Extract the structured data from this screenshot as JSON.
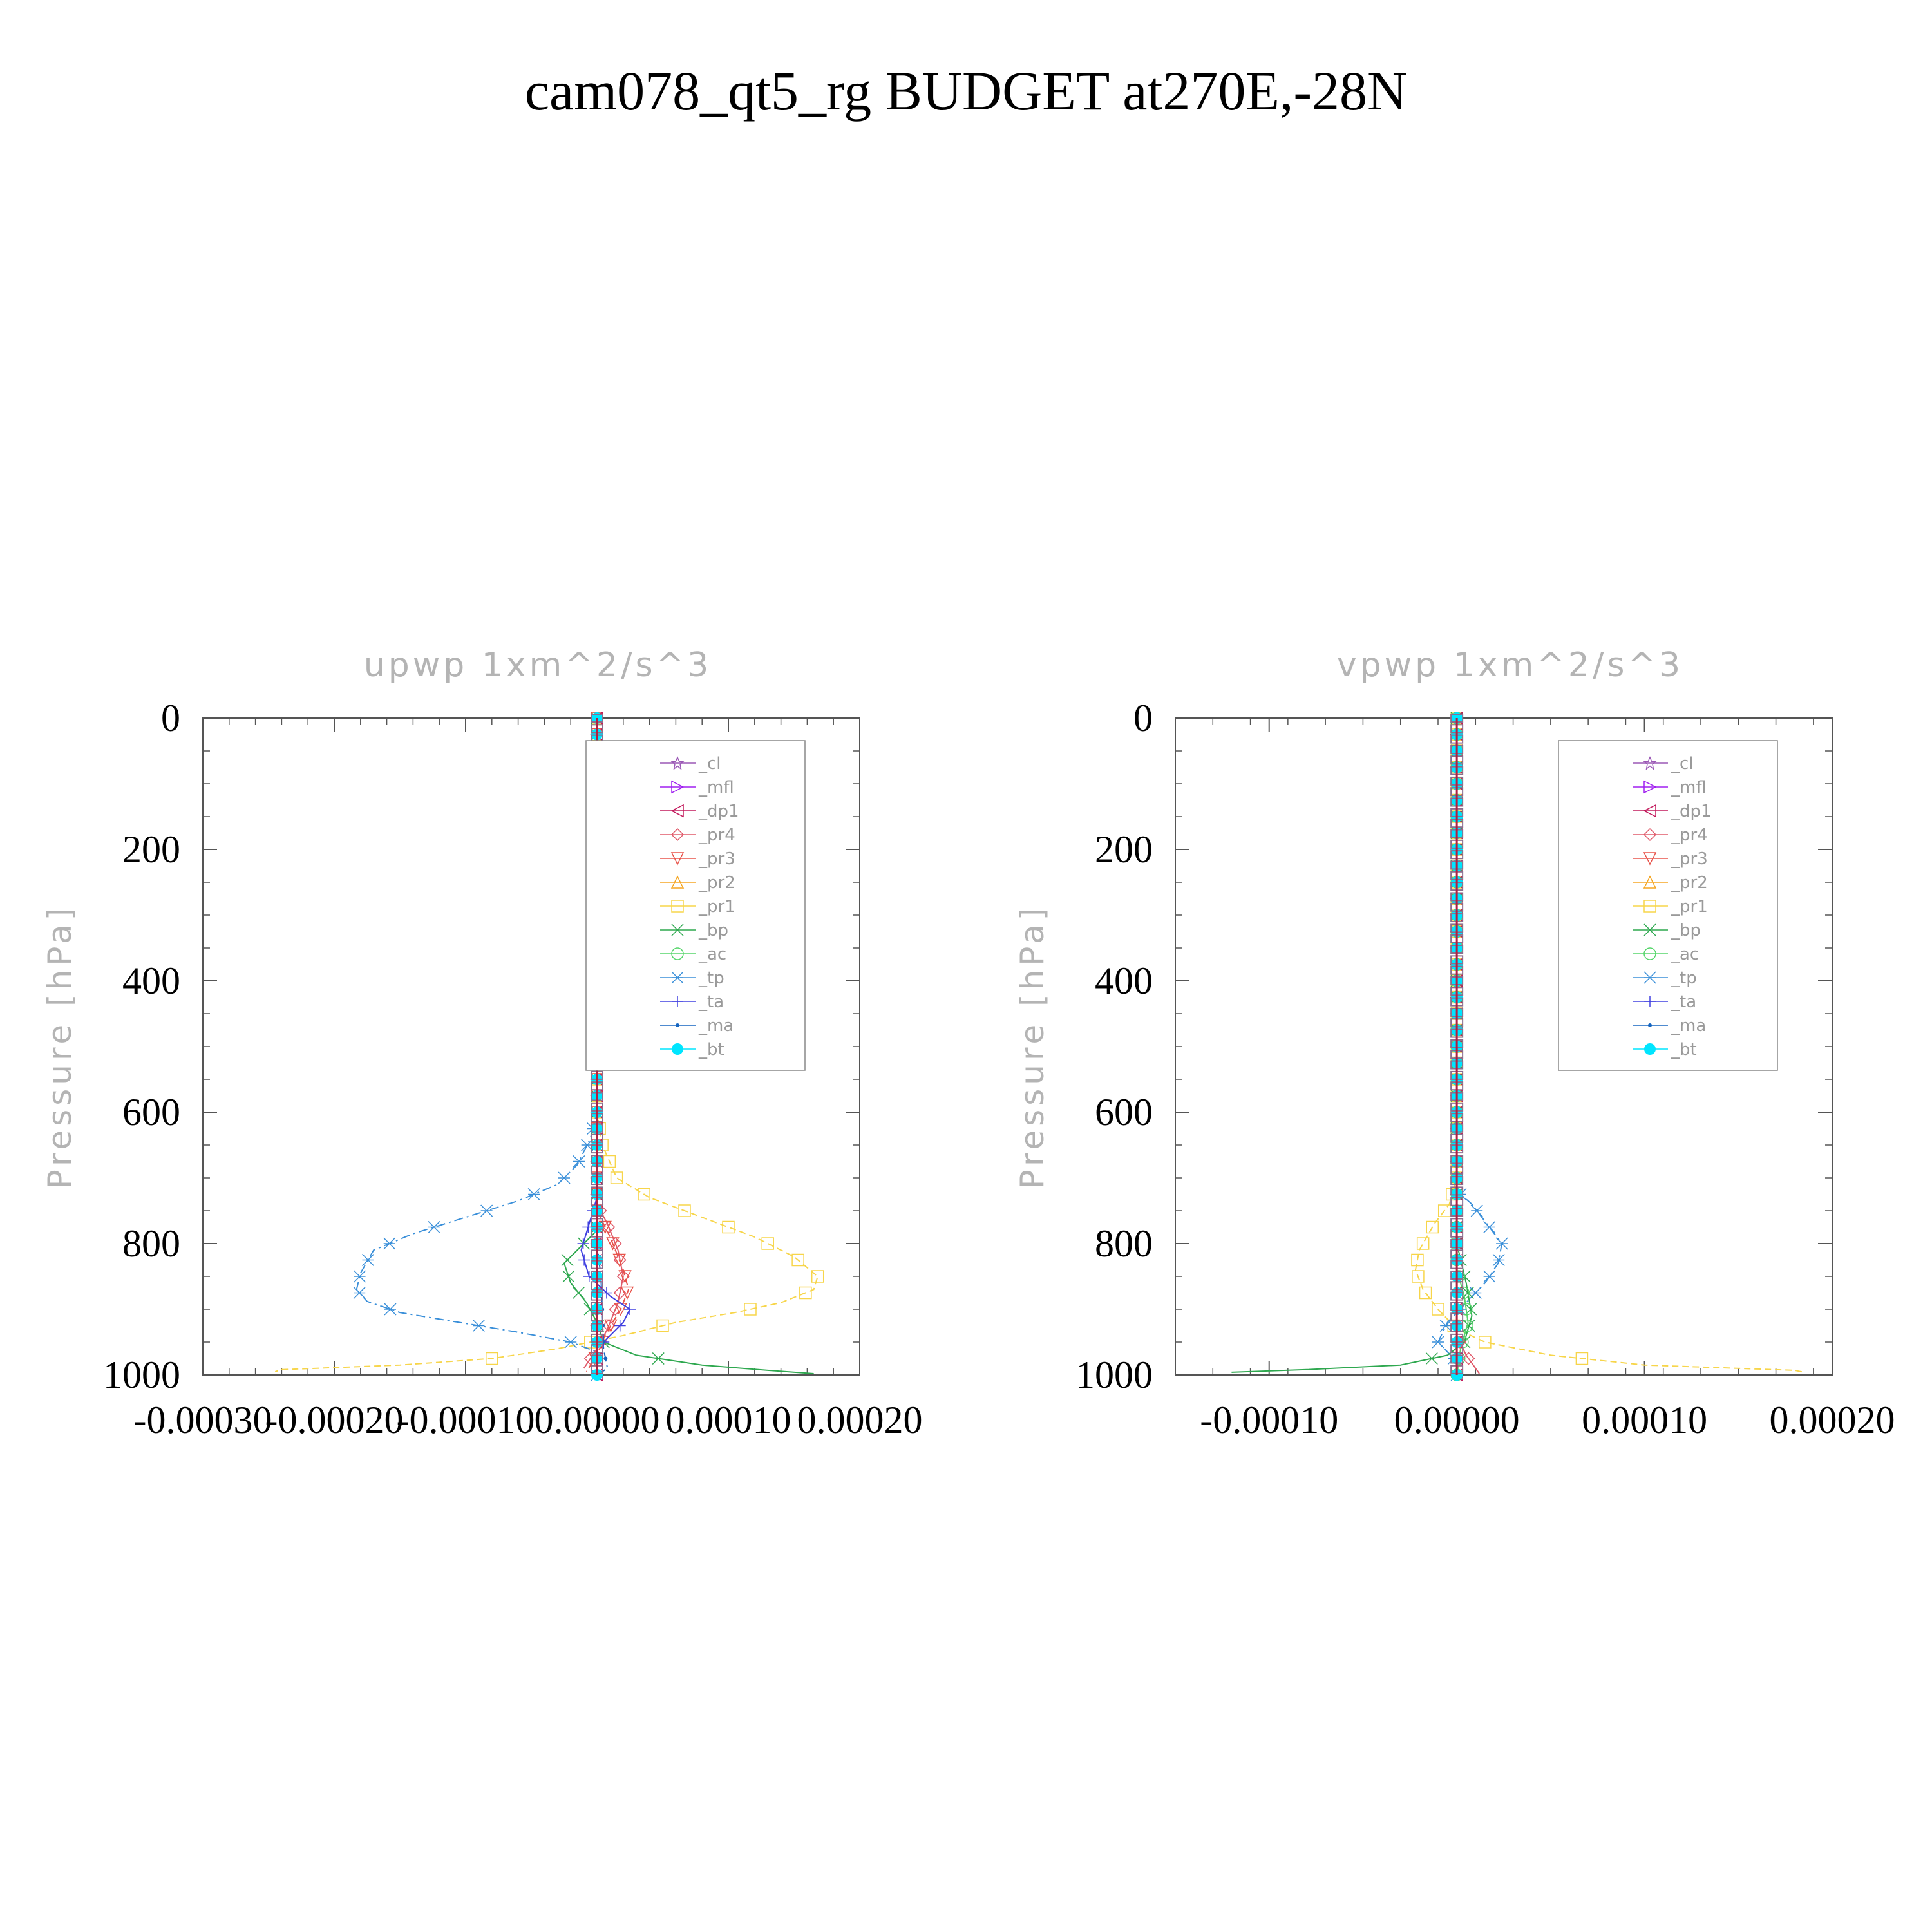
{
  "title": "cam078_qt5_rg  BUDGET at270E,-28N",
  "ylabel": "Pressure [hPa]",
  "legend": [
    "_cl",
    "_mfl",
    "_dp1",
    "_pr4",
    "_pr3",
    "_pr2",
    "_pr1",
    "_bp",
    "_ac",
    "_tp",
    "_ta",
    "_ma",
    "_bt"
  ],
  "colors": {
    "_cl": "#9b59b6",
    "_mfl": "#a020f0",
    "_dp1": "#c2185b",
    "_pr4": "#e05a6a",
    "_pr3": "#e8534a",
    "_pr2": "#f5a623",
    "_pr1": "#f7d54a",
    "_bp": "#2ea84f",
    "_ac": "#55d66a",
    "_tp": "#3a8fd9",
    "_ta": "#4040e0",
    "_ma": "#1565c0",
    "_bt": "#00e5ff"
  },
  "chart_data": [
    {
      "type": "line",
      "title": "upwp   1xm^2/s^3",
      "ylabel": "Pressure [hPa]",
      "xlim": [
        -0.0003,
        0.0002
      ],
      "ylim": [
        1000,
        0
      ],
      "xticks": [
        "-0.00030",
        "-0.00020",
        "-0.00010",
        "0.00000",
        "0.00010",
        "0.00020"
      ],
      "yticks": [
        "0",
        "200",
        "400",
        "600",
        "800",
        "1000"
      ],
      "legend_placement": "top-right",
      "series": [
        {
          "name": "_pr1",
          "points": [
            [
              0.0,
              0
            ],
            [
              0.0,
              600
            ],
            [
              4e-06,
              650
            ],
            [
              1.5e-05,
              700
            ],
            [
              4e-05,
              730
            ],
            [
              8e-05,
              760
            ],
            [
              0.00012,
              790
            ],
            [
              0.00015,
              820
            ],
            [
              0.000168,
              850
            ],
            [
              0.000165,
              870
            ],
            [
              0.00014,
              890
            ],
            [
              0.000105,
              905
            ],
            [
              6e-05,
              920
            ],
            [
              2e-05,
              940
            ],
            [
              -3e-05,
              960
            ],
            [
              -8e-05,
              975
            ],
            [
              -0.00015,
              985
            ],
            [
              -0.00024,
              992
            ],
            [
              -0.000245,
              995
            ]
          ]
        },
        {
          "name": "_tp",
          "points": [
            [
              0.0,
              0
            ],
            [
              0.0,
              600
            ],
            [
              -5e-06,
              640
            ],
            [
              -1.5e-05,
              680
            ],
            [
              -3e-05,
              710
            ],
            [
              -6e-05,
              735
            ],
            [
              -0.0001,
              760
            ],
            [
              -0.00014,
              785
            ],
            [
              -0.00017,
              810
            ],
            [
              -0.00018,
              845
            ],
            [
              -0.000183,
              870
            ],
            [
              -0.000175,
              888
            ],
            [
              -0.00015,
              905
            ],
            [
              -0.000105,
              920
            ],
            [
              -6e-05,
              935
            ],
            [
              -2e-05,
              950
            ],
            [
              0.0,
              965
            ],
            [
              0.0,
              1000
            ]
          ]
        },
        {
          "name": "_bp",
          "points": [
            [
              0.0,
              0
            ],
            [
              0.0,
              780
            ],
            [
              -1e-05,
              800
            ],
            [
              -2.5e-05,
              830
            ],
            [
              -2e-05,
              860
            ],
            [
              -8e-06,
              890
            ],
            [
              0.0,
              920
            ],
            [
              5e-06,
              950
            ],
            [
              3e-05,
              970
            ],
            [
              8e-05,
              985
            ],
            [
              0.00013,
              993
            ],
            [
              0.000165,
              998
            ]
          ]
        },
        {
          "name": "_pr4",
          "points": [
            [
              0.0,
              0
            ],
            [
              0.0,
              740
            ],
            [
              8e-06,
              770
            ],
            [
              1.6e-05,
              810
            ],
            [
              2e-05,
              850
            ],
            [
              1.6e-05,
              890
            ],
            [
              8e-06,
              930
            ],
            [
              0.0,
              960
            ],
            [
              -1e-05,
              990
            ]
          ]
        },
        {
          "name": "_pr3",
          "points": [
            [
              0.0,
              0
            ],
            [
              0.0,
              750
            ],
            [
              1e-05,
              790
            ],
            [
              2e-05,
              840
            ],
            [
              2.4e-05,
              870
            ],
            [
              1.8e-05,
              900
            ],
            [
              6e-06,
              940
            ],
            [
              0.0,
              970
            ],
            [
              -8e-06,
              995
            ]
          ]
        },
        {
          "name": "_ta",
          "points": [
            [
              0.0,
              0
            ],
            [
              0.0,
              730
            ],
            [
              -6e-06,
              770
            ],
            [
              -1.2e-05,
              810
            ],
            [
              -6e-06,
              850
            ],
            [
              1e-05,
              880
            ],
            [
              2.5e-05,
              900
            ],
            [
              2e-05,
              920
            ],
            [
              0.0,
              960
            ],
            [
              0.0,
              1000
            ]
          ]
        },
        {
          "name": "_ma",
          "points": [
            [
              0.0,
              0
            ],
            [
              0.0,
              800
            ],
            [
              3e-06,
              850
            ],
            [
              4e-06,
              900
            ],
            [
              5e-06,
              960
            ],
            [
              8e-06,
              990
            ],
            [
              0.0,
              1000
            ]
          ]
        },
        {
          "name": "_dp1",
          "points": [
            [
              0.0,
              0
            ],
            [
              0.0,
              1000
            ]
          ]
        },
        {
          "name": "_bt",
          "points": [
            [
              0.0,
              0
            ],
            [
              0.0,
              1000
            ]
          ]
        }
      ]
    },
    {
      "type": "line",
      "title": "vpwp   1xm^2/s^3",
      "ylabel": "Pressure [hPa]",
      "xlim": [
        -0.00015,
        0.0002
      ],
      "ylim": [
        1000,
        0
      ],
      "xticks": [
        "-0.00010",
        "0.00000",
        "0.00010",
        "0.00020"
      ],
      "yticks": [
        "0",
        "200",
        "400",
        "600",
        "800",
        "1000"
      ],
      "legend_placement": "top-right",
      "series": [
        {
          "name": "_pr1",
          "points": [
            [
              0.0,
              0
            ],
            [
              0.0,
              700
            ],
            [
              -4e-06,
              740
            ],
            [
              -1.2e-05,
              770
            ],
            [
              -2e-05,
              810
            ],
            [
              -2.2e-05,
              840
            ],
            [
              -1.8e-05,
              870
            ],
            [
              -1e-05,
              900
            ],
            [
              0.0,
              930
            ],
            [
              1.5e-05,
              950
            ],
            [
              5e-05,
              970
            ],
            [
              0.0001,
              985
            ],
            [
              0.00018,
              993
            ],
            [
              0.000185,
              996
            ]
          ]
        },
        {
          "name": "_tp",
          "points": [
            [
              0.0,
              0
            ],
            [
              0.0,
              720
            ],
            [
              8e-06,
              740
            ],
            [
              1.6e-05,
              770
            ],
            [
              2.4e-05,
              800
            ],
            [
              2.2e-05,
              830
            ],
            [
              1.5e-05,
              860
            ],
            [
              5e-06,
              890
            ],
            [
              -5e-06,
              920
            ],
            [
              -1e-05,
              950
            ],
            [
              0.0,
              980
            ],
            [
              0.0,
              1000
            ]
          ]
        },
        {
          "name": "_bp",
          "points": [
            [
              0.0,
              0
            ],
            [
              0.0,
              800
            ],
            [
              5e-06,
              860
            ],
            [
              8e-06,
              910
            ],
            [
              4e-06,
              950
            ],
            [
              -5e-06,
              970
            ],
            [
              -3e-05,
              985
            ],
            [
              -8e-05,
              992
            ],
            [
              -0.00012,
              996
            ]
          ]
        },
        {
          "name": "_ac",
          "points": [
            [
              0.0,
              0
            ],
            [
              0.0,
              840
            ],
            [
              4e-06,
              880
            ],
            [
              6e-06,
              920
            ],
            [
              2e-06,
              960
            ],
            [
              0.0,
              1000
            ]
          ]
        },
        {
          "name": "_pr4",
          "points": [
            [
              0.0,
              0
            ],
            [
              0.0,
              940
            ],
            [
              5e-06,
              970
            ],
            [
              1e-05,
              990
            ],
            [
              1.2e-05,
              998
            ]
          ]
        },
        {
          "name": "_dp1",
          "points": [
            [
              0.0,
              0
            ],
            [
              0.0,
              1000
            ]
          ]
        },
        {
          "name": "_bt",
          "points": [
            [
              0.0,
              0
            ],
            [
              0.0,
              1000
            ]
          ]
        }
      ]
    }
  ]
}
